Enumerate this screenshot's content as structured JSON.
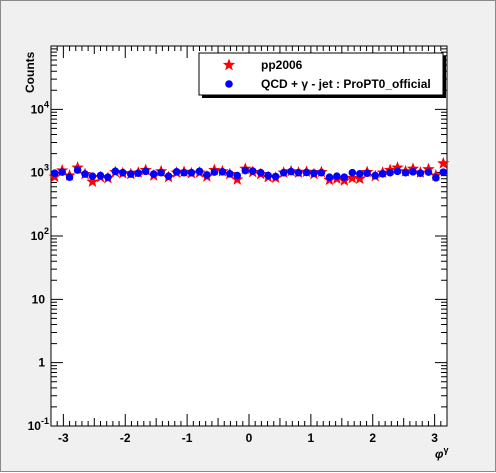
{
  "chart_data": {
    "type": "scatter",
    "title": "",
    "xlabel": "φ^γ",
    "ylabel": "Counts",
    "xlim": [
      -3.2,
      3.2
    ],
    "ylim": [
      0.1,
      100000
    ],
    "log_y": true,
    "grid": false,
    "legend_position": "top-right",
    "x_ticks": [
      "-3",
      "-2",
      "-1",
      "0",
      "1",
      "2",
      "3"
    ],
    "y_ticks": [
      {
        "base": "10",
        "exp": "-1"
      },
      {
        "base": "1",
        "exp": ""
      },
      {
        "base": "10",
        "exp": ""
      },
      {
        "base": "10",
        "exp": "2"
      },
      {
        "base": "10",
        "exp": "3"
      },
      {
        "base": "10",
        "exp": "4"
      }
    ],
    "x": [
      -3.14,
      -3.02,
      -2.9,
      -2.77,
      -2.65,
      -2.53,
      -2.4,
      -2.28,
      -2.16,
      -2.04,
      -1.91,
      -1.79,
      -1.67,
      -1.54,
      -1.42,
      -1.3,
      -1.17,
      -1.05,
      -0.93,
      -0.8,
      -0.68,
      -0.56,
      -0.43,
      -0.31,
      -0.19,
      -0.06,
      0.06,
      0.19,
      0.31,
      0.43,
      0.56,
      0.68,
      0.8,
      0.93,
      1.05,
      1.17,
      1.3,
      1.42,
      1.54,
      1.67,
      1.79,
      1.91,
      2.04,
      2.16,
      2.28,
      2.4,
      2.53,
      2.65,
      2.77,
      2.9,
      3.02,
      3.14
    ],
    "series": [
      {
        "name": "pp2006",
        "color": "#ff0000",
        "marker": "star",
        "values": [
          860,
          1080,
          900,
          1200,
          950,
          720,
          850,
          820,
          1020,
          980,
          950,
          1000,
          1100,
          900,
          1050,
          850,
          1000,
          1030,
          980,
          1000,
          870,
          1100,
          1050,
          950,
          780,
          1150,
          1020,
          950,
          850,
          830,
          1000,
          1050,
          1000,
          1030,
          950,
          1020,
          770,
          800,
          750,
          820,
          800,
          1020,
          880,
          1000,
          1100,
          1200,
          1050,
          1150,
          1000,
          1130,
          900,
          1400
        ]
      },
      {
        "name": "QCD + γ - jet : ProPT0_official",
        "color": "#0000ff",
        "marker": "circle",
        "values": [
          980,
          1020,
          850,
          1100,
          950,
          880,
          900,
          850,
          1050,
          1000,
          950,
          980,
          1050,
          950,
          1000,
          880,
          1030,
          1000,
          1000,
          1050,
          920,
          1020,
          1030,
          960,
          900,
          1080,
          1060,
          1000,
          900,
          870,
          1000,
          1040,
          1000,
          1010,
          980,
          1000,
          850,
          880,
          850,
          1000,
          960,
          980,
          900,
          960,
          1000,
          1050,
          1000,
          1030,
          980,
          1020,
          830,
          1020
        ]
      }
    ]
  }
}
